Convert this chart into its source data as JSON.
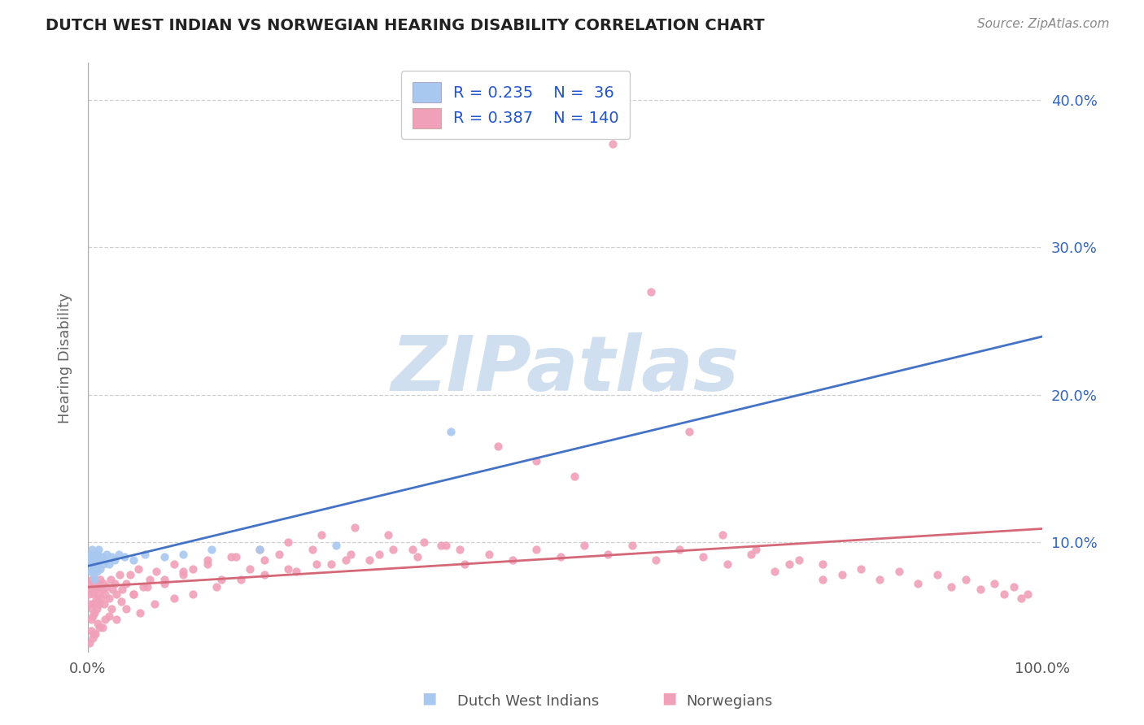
{
  "title": "DUTCH WEST INDIAN VS NORWEGIAN HEARING DISABILITY CORRELATION CHART",
  "source": "Source: ZipAtlas.com",
  "ylabel": "Hearing Disability",
  "xmin": 0.0,
  "xmax": 1.0,
  "ymin": 0.025,
  "ymax": 0.425,
  "yticks": [
    0.1,
    0.2,
    0.3,
    0.4
  ],
  "ytick_labels": [
    "10.0%",
    "20.0%",
    "30.0%",
    "40.0%"
  ],
  "xtick_labels": [
    "0.0%",
    "100.0%"
  ],
  "legend_label1": "R = 0.235    N =  36",
  "legend_label2": "R = 0.387    N = 140",
  "bottom_label1": "Dutch West Indians",
  "bottom_label2": "Norwegians",
  "color_dutch": "#a8c8f0",
  "color_norwegian": "#f0a0b8",
  "color_line_dutch": "#4472c4",
  "color_line_norwegian": "#d46878",
  "background_color": "#ffffff",
  "grid_color": "#cccccc",
  "title_color": "#222222",
  "source_color": "#888888",
  "legend_text_color": "#2255cc",
  "watermark_color": "#d0dff0",
  "dutch_x": [
    0.002,
    0.003,
    0.003,
    0.004,
    0.004,
    0.005,
    0.005,
    0.006,
    0.006,
    0.007,
    0.007,
    0.008,
    0.008,
    0.009,
    0.01,
    0.01,
    0.011,
    0.012,
    0.013,
    0.015,
    0.016,
    0.018,
    0.02,
    0.022,
    0.025,
    0.028,
    0.032,
    0.038,
    0.048,
    0.06,
    0.08,
    0.1,
    0.13,
    0.18,
    0.26,
    0.38
  ],
  "dutch_y": [
    0.088,
    0.092,
    0.08,
    0.085,
    0.095,
    0.082,
    0.09,
    0.088,
    0.078,
    0.092,
    0.075,
    0.085,
    0.09,
    0.08,
    0.092,
    0.085,
    0.095,
    0.088,
    0.082,
    0.09,
    0.085,
    0.088,
    0.092,
    0.085,
    0.09,
    0.088,
    0.092,
    0.09,
    0.088,
    0.092,
    0.09,
    0.092,
    0.095,
    0.095,
    0.098,
    0.175
  ],
  "norwegian_x": [
    0.001,
    0.002,
    0.002,
    0.003,
    0.003,
    0.004,
    0.004,
    0.005,
    0.005,
    0.006,
    0.006,
    0.007,
    0.007,
    0.008,
    0.008,
    0.009,
    0.01,
    0.01,
    0.011,
    0.012,
    0.012,
    0.013,
    0.014,
    0.015,
    0.016,
    0.017,
    0.018,
    0.02,
    0.022,
    0.024,
    0.026,
    0.028,
    0.03,
    0.033,
    0.036,
    0.04,
    0.044,
    0.048,
    0.053,
    0.058,
    0.065,
    0.072,
    0.08,
    0.09,
    0.1,
    0.11,
    0.125,
    0.14,
    0.155,
    0.17,
    0.185,
    0.2,
    0.218,
    0.235,
    0.255,
    0.275,
    0.295,
    0.32,
    0.345,
    0.37,
    0.395,
    0.42,
    0.445,
    0.47,
    0.495,
    0.52,
    0.545,
    0.57,
    0.595,
    0.62,
    0.645,
    0.67,
    0.695,
    0.72,
    0.745,
    0.77,
    0.79,
    0.81,
    0.83,
    0.85,
    0.87,
    0.89,
    0.905,
    0.92,
    0.935,
    0.95,
    0.96,
    0.97,
    0.978,
    0.985,
    0.003,
    0.006,
    0.01,
    0.015,
    0.022,
    0.03,
    0.04,
    0.055,
    0.07,
    0.09,
    0.11,
    0.135,
    0.16,
    0.185,
    0.21,
    0.24,
    0.27,
    0.305,
    0.34,
    0.375,
    0.002,
    0.005,
    0.008,
    0.012,
    0.018,
    0.025,
    0.035,
    0.048,
    0.062,
    0.08,
    0.1,
    0.125,
    0.15,
    0.18,
    0.21,
    0.245,
    0.28,
    0.315,
    0.352,
    0.39,
    0.43,
    0.47,
    0.51,
    0.55,
    0.59,
    0.63,
    0.665,
    0.7,
    0.735,
    0.77
  ],
  "norwegian_y": [
    0.065,
    0.058,
    0.072,
    0.048,
    0.068,
    0.055,
    0.075,
    0.05,
    0.07,
    0.058,
    0.065,
    0.052,
    0.072,
    0.06,
    0.068,
    0.055,
    0.065,
    0.072,
    0.06,
    0.07,
    0.058,
    0.075,
    0.062,
    0.068,
    0.072,
    0.058,
    0.065,
    0.07,
    0.062,
    0.075,
    0.068,
    0.072,
    0.065,
    0.078,
    0.068,
    0.072,
    0.078,
    0.065,
    0.082,
    0.07,
    0.075,
    0.08,
    0.072,
    0.085,
    0.078,
    0.082,
    0.088,
    0.075,
    0.09,
    0.082,
    0.088,
    0.092,
    0.08,
    0.095,
    0.085,
    0.092,
    0.088,
    0.095,
    0.09,
    0.098,
    0.085,
    0.092,
    0.088,
    0.095,
    0.09,
    0.098,
    0.092,
    0.098,
    0.088,
    0.095,
    0.09,
    0.085,
    0.092,
    0.08,
    0.088,
    0.085,
    0.078,
    0.082,
    0.075,
    0.08,
    0.072,
    0.078,
    0.07,
    0.075,
    0.068,
    0.072,
    0.065,
    0.07,
    0.062,
    0.065,
    0.04,
    0.038,
    0.045,
    0.042,
    0.05,
    0.048,
    0.055,
    0.052,
    0.058,
    0.062,
    0.065,
    0.07,
    0.075,
    0.078,
    0.082,
    0.085,
    0.088,
    0.092,
    0.095,
    0.098,
    0.032,
    0.035,
    0.038,
    0.042,
    0.048,
    0.055,
    0.06,
    0.065,
    0.07,
    0.075,
    0.08,
    0.085,
    0.09,
    0.095,
    0.1,
    0.105,
    0.11,
    0.105,
    0.1,
    0.095,
    0.165,
    0.155,
    0.145,
    0.37,
    0.27,
    0.175,
    0.105,
    0.095,
    0.085,
    0.075
  ]
}
